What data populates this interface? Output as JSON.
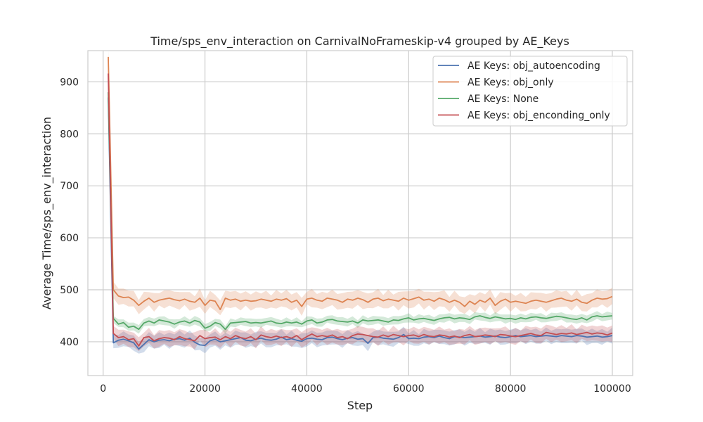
{
  "chart_data": {
    "type": "line",
    "title": "Time/sps_env_interaction on CarnivalNoFrameskip-v4 grouped by AE_Keys",
    "xlabel": "Step",
    "ylabel": "Average Time/sps_env_interaction",
    "xlim": [
      -3000,
      104000
    ],
    "ylim": [
      335,
      960
    ],
    "xticks": [
      0,
      20000,
      40000,
      60000,
      80000,
      100000
    ],
    "xtick_labels": [
      "0",
      "20000",
      "40000",
      "60000",
      "80000",
      "100000"
    ],
    "yticks": [
      400,
      500,
      600,
      700,
      800,
      900
    ],
    "ytick_labels": [
      "400",
      "500",
      "600",
      "700",
      "800",
      "900"
    ],
    "grid": true,
    "legend_position": "top-right",
    "x": [
      1000,
      2000,
      3000,
      4000,
      5000,
      6000,
      7000,
      8000,
      9000,
      10000,
      11000,
      12000,
      13000,
      14000,
      15000,
      16000,
      17000,
      18000,
      19000,
      20000,
      21000,
      22000,
      23000,
      24000,
      25000,
      26000,
      27000,
      28000,
      29000,
      30000,
      31000,
      32000,
      33000,
      34000,
      35000,
      36000,
      37000,
      38000,
      39000,
      40000,
      41000,
      42000,
      43000,
      44000,
      45000,
      46000,
      47000,
      48000,
      49000,
      50000,
      51000,
      52000,
      53000,
      54000,
      55000,
      56000,
      57000,
      58000,
      59000,
      60000,
      61000,
      62000,
      63000,
      64000,
      65000,
      66000,
      67000,
      68000,
      69000,
      70000,
      71000,
      72000,
      73000,
      74000,
      75000,
      76000,
      77000,
      78000,
      79000,
      80000,
      81000,
      82000,
      83000,
      84000,
      85000,
      86000,
      87000,
      88000,
      89000,
      90000,
      91000,
      92000,
      93000,
      94000,
      95000,
      96000,
      97000,
      98000,
      99000,
      100000
    ],
    "series": [
      {
        "name": "AE Keys: obj_autoencoding",
        "color": "#4c72b0",
        "band": 12,
        "values": [
          870,
          398,
          403,
          405,
          402,
          398,
          386,
          395,
          404,
          400,
          403,
          404,
          402,
          405,
          406,
          403,
          407,
          399,
          394,
          393,
          402,
          405,
          400,
          402,
          404,
          406,
          408,
          403,
          402,
          405,
          407,
          404,
          403,
          405,
          409,
          404,
          406,
          403,
          401,
          406,
          407,
          405,
          404,
          408,
          409,
          406,
          404,
          407,
          408,
          405,
          406,
          397,
          408,
          409,
          407,
          406,
          405,
          408,
          414,
          406,
          407,
          406,
          409,
          410,
          408,
          411,
          408,
          406,
          410,
          409,
          408,
          409,
          410,
          411,
          409,
          410,
          411,
          409,
          408,
          410,
          412,
          410,
          411,
          412,
          410,
          411,
          412,
          411,
          410,
          412,
          411,
          410,
          412,
          411,
          409,
          410,
          411,
          409,
          410,
          412
        ]
      },
      {
        "name": "AE Keys: obj_only",
        "color": "#dd8452",
        "band": 14,
        "values": [
          948,
          500,
          488,
          485,
          486,
          480,
          470,
          478,
          484,
          476,
          480,
          482,
          484,
          481,
          479,
          482,
          478,
          476,
          484,
          470,
          480,
          478,
          462,
          484,
          480,
          482,
          478,
          480,
          478,
          479,
          482,
          480,
          478,
          482,
          480,
          483,
          476,
          480,
          468,
          482,
          484,
          480,
          478,
          484,
          482,
          480,
          476,
          482,
          480,
          484,
          481,
          476,
          482,
          484,
          479,
          482,
          480,
          478,
          484,
          480,
          483,
          486,
          480,
          482,
          478,
          484,
          481,
          476,
          480,
          476,
          468,
          478,
          472,
          480,
          476,
          484,
          470,
          478,
          482,
          476,
          478,
          476,
          474,
          478,
          480,
          478,
          476,
          479,
          482,
          484,
          480,
          478,
          482,
          476,
          474,
          480,
          484,
          482,
          483,
          487
        ]
      },
      {
        "name": "AE Keys: None",
        "color": "#55a868",
        "band": 7,
        "values": [
          880,
          445,
          434,
          437,
          428,
          430,
          424,
          436,
          440,
          436,
          442,
          440,
          438,
          434,
          438,
          440,
          436,
          441,
          438,
          426,
          430,
          437,
          434,
          424,
          436,
          437,
          438,
          439,
          436,
          437,
          436,
          438,
          440,
          436,
          435,
          438,
          436,
          438,
          434,
          440,
          442,
          436,
          438,
          442,
          443,
          440,
          439,
          438,
          440,
          436,
          442,
          440,
          441,
          442,
          440,
          438,
          442,
          441,
          444,
          446,
          442,
          444,
          445,
          443,
          441,
          444,
          446,
          447,
          444,
          446,
          445,
          443,
          448,
          450,
          447,
          445,
          448,
          446,
          444,
          445,
          443,
          446,
          444,
          447,
          448,
          446,
          445,
          447,
          449,
          448,
          446,
          444,
          443,
          446,
          442,
          448,
          450,
          448,
          449,
          450
        ]
      },
      {
        "name": "AE Keys: obj_enconding_only",
        "color": "#c44e52",
        "band": 13,
        "values": [
          916,
          416,
          408,
          410,
          404,
          406,
          392,
          408,
          410,
          402,
          406,
          408,
          407,
          404,
          410,
          406,
          404,
          402,
          412,
          406,
          408,
          409,
          404,
          410,
          406,
          412,
          408,
          406,
          410,
          404,
          413,
          410,
          408,
          411,
          408,
          410,
          407,
          412,
          404,
          410,
          415,
          410,
          412,
          410,
          413,
          408,
          410,
          406,
          412,
          415,
          414,
          412,
          410,
          409,
          413,
          410,
          414,
          412,
          410,
          412,
          413,
          410,
          414,
          411,
          410,
          413,
          412,
          409,
          411,
          408,
          412,
          414,
          410,
          411,
          413,
          412,
          410,
          414,
          413,
          411,
          410,
          412,
          414,
          416,
          413,
          412,
          418,
          416,
          414,
          416,
          415,
          417,
          414,
          416,
          418,
          415,
          417,
          416,
          413,
          417
        ]
      }
    ]
  }
}
